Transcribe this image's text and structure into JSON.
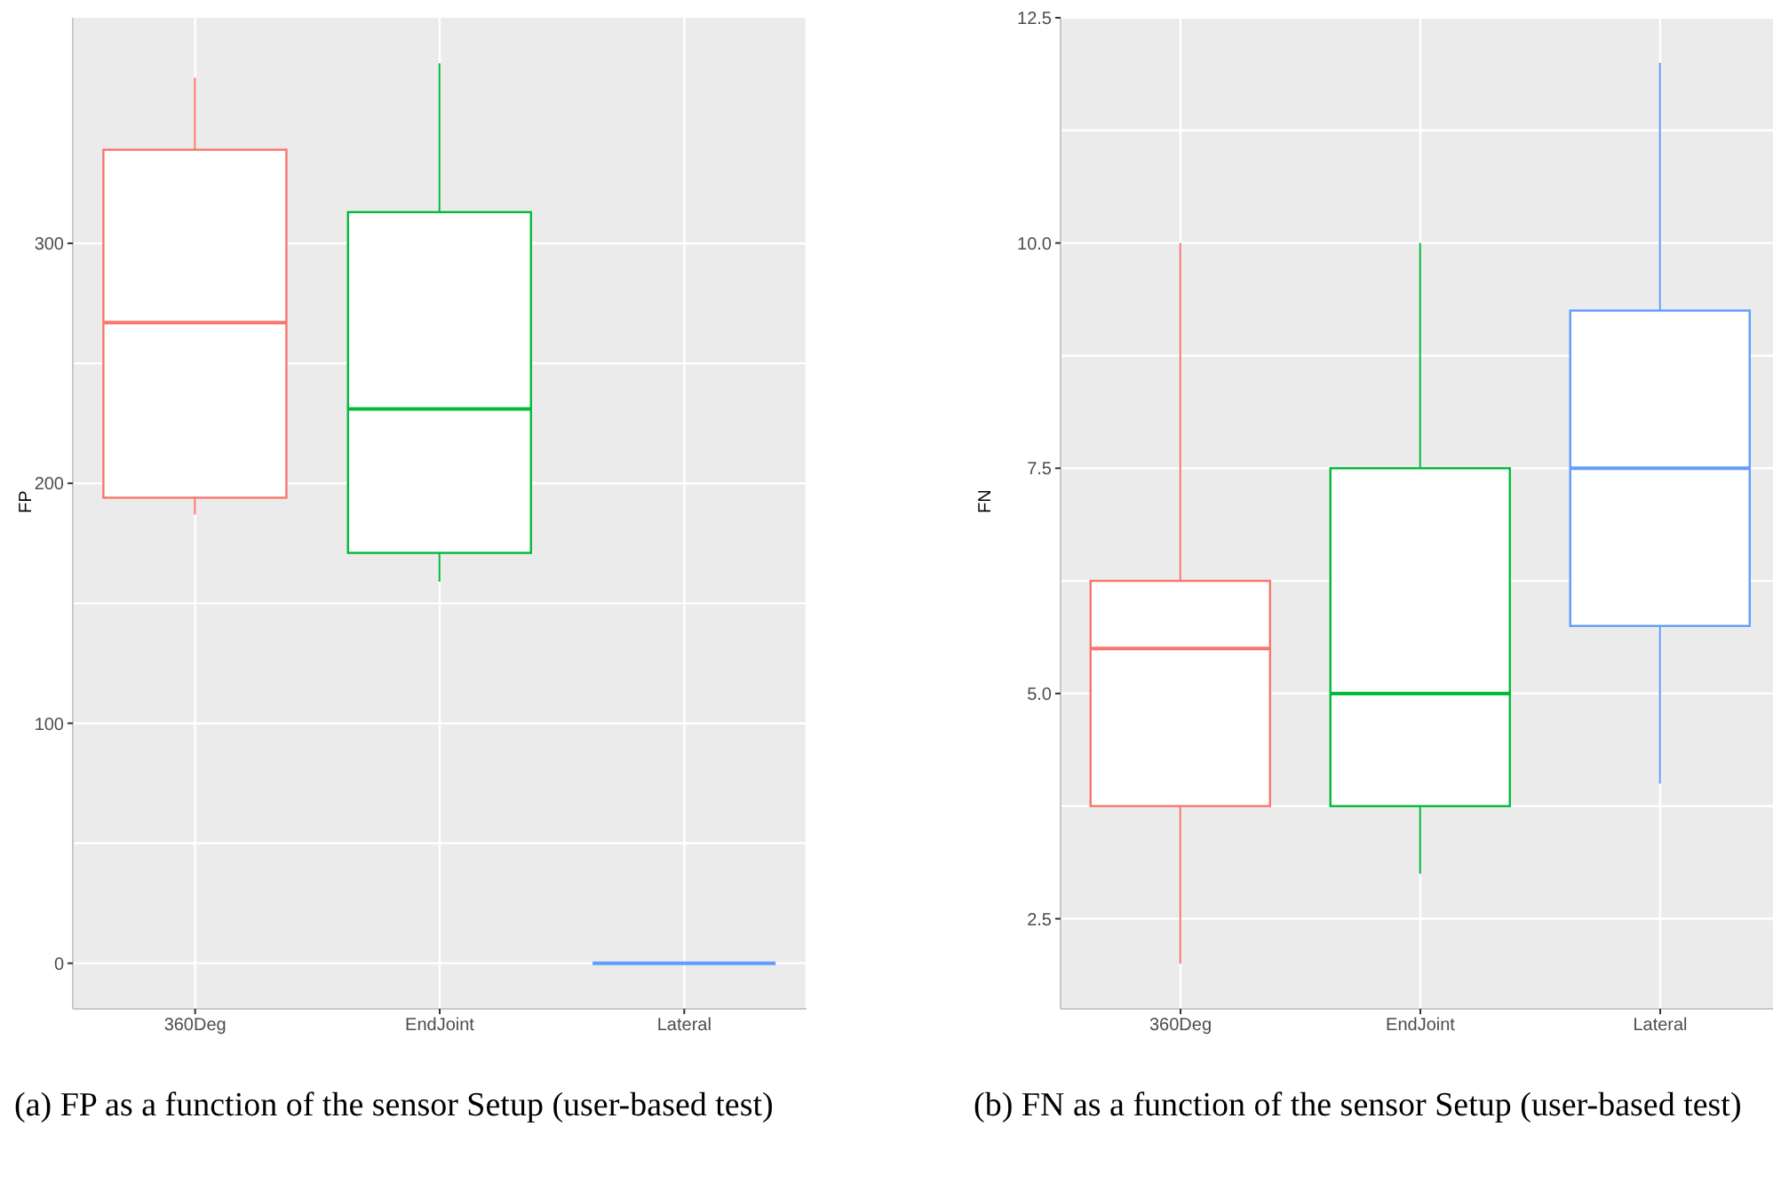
{
  "chart_data": [
    {
      "type": "box",
      "ylabel": "FP",
      "categories": [
        "360Deg",
        "EndJoint",
        "Lateral"
      ],
      "colors": [
        "#f8766d",
        "#00ba38",
        "#619cff"
      ],
      "boxes": [
        {
          "low": 187,
          "q1": 194,
          "median": 267,
          "q3": 339,
          "high": 369
        },
        {
          "low": 159,
          "q1": 171,
          "median": 231,
          "q3": 313,
          "high": 375
        },
        {
          "low": 0,
          "q1": 0,
          "median": 0,
          "q3": 0,
          "high": 0
        }
      ],
      "ylim": [
        -19,
        394
      ],
      "yticks": [
        0,
        100,
        200,
        300
      ],
      "grid": true,
      "legend": false,
      "annotations": [
        "(a) FP as a function of the sensor Setup (user-based test)"
      ]
    },
    {
      "type": "box",
      "ylabel": "FN",
      "categories": [
        "360Deg",
        "EndJoint",
        "Lateral"
      ],
      "colors": [
        "#f8766d",
        "#00ba38",
        "#619cff"
      ],
      "boxes": [
        {
          "low": 2,
          "q1": 3.75,
          "median": 5.5,
          "q3": 6.25,
          "high": 10
        },
        {
          "low": 3,
          "q1": 3.75,
          "median": 5,
          "q3": 7.5,
          "high": 10
        },
        {
          "low": 4,
          "q1": 5.75,
          "median": 7.5,
          "q3": 9.25,
          "high": 12
        }
      ],
      "ylim": [
        1.5,
        12.5
      ],
      "yticks": [
        2.5,
        {
          "value": 5,
          "label": "5.0"
        },
        7.5,
        {
          "value": 10,
          "label": "10.0"
        },
        12.5
      ],
      "grid": true,
      "legend": false,
      "annotations": [
        "(b) FN as a function of the sensor Setup (user-based test)"
      ]
    }
  ]
}
